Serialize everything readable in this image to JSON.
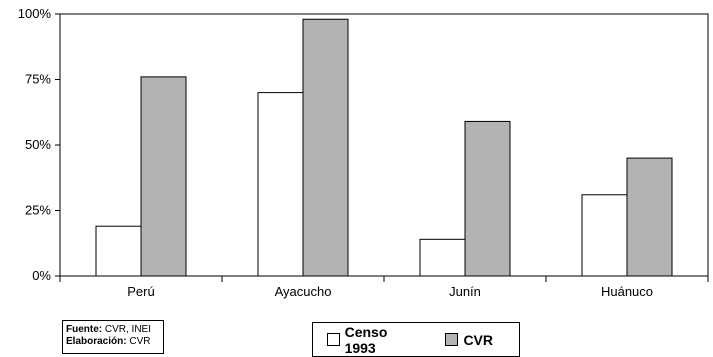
{
  "chart_data": {
    "type": "bar",
    "categories": [
      "Perú",
      "Ayacucho",
      "Junín",
      "Huánuco"
    ],
    "series": [
      {
        "name": "Censo 1993",
        "values": [
          19,
          70,
          14,
          31
        ],
        "color": "#ffffff"
      },
      {
        "name": "CVR",
        "values": [
          76,
          98,
          59,
          45
        ],
        "color": "#b3b3b3"
      }
    ],
    "ylim": [
      0,
      100
    ],
    "y_ticks": [
      "0%",
      "25%",
      "50%",
      "75%",
      "100%"
    ],
    "y_tick_values": [
      0,
      25,
      50,
      75,
      100
    ],
    "title": "",
    "xlabel": "",
    "ylabel": "",
    "grid": false,
    "legend_placement": "bottom"
  },
  "source": {
    "fuente_label": "Fuente:",
    "fuente_value": "CVR, INEI",
    "elaboracion_label": "Elaboración:",
    "elaboracion_value": "CVR"
  }
}
